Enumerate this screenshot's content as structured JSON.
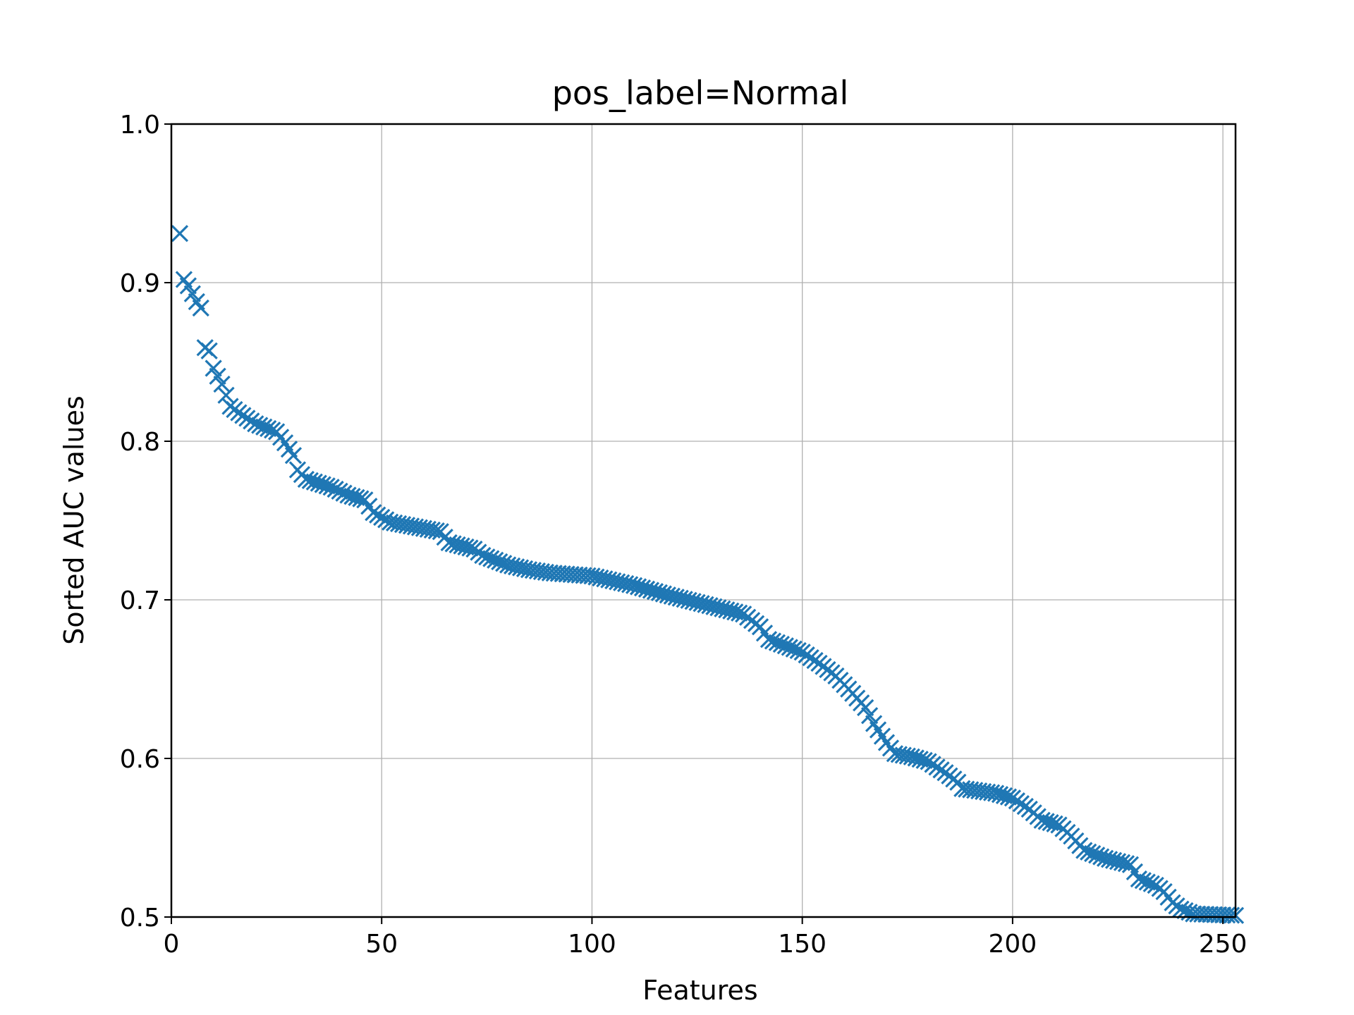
{
  "chart_data": {
    "type": "scatter",
    "title": "pos_label=Normal",
    "xlabel": "Features",
    "ylabel": "Sorted AUC values",
    "xlim": [
      0,
      253
    ],
    "ylim": [
      0.5,
      1.0
    ],
    "xticks": [
      0,
      50,
      100,
      150,
      200,
      250
    ],
    "yticks": [
      0.5,
      0.6,
      0.7,
      0.8,
      0.9,
      1.0
    ],
    "xtick_labels": [
      "0",
      "50",
      "100",
      "150",
      "200",
      "250"
    ],
    "ytick_labels": [
      "0.5",
      "0.6",
      "0.7",
      "0.8",
      "0.9",
      "1.0"
    ],
    "grid": true,
    "marker": "x",
    "color": "#1f77b4",
    "anchors": [
      [
        2,
        0.931
      ],
      [
        3,
        0.902
      ],
      [
        4,
        0.898
      ],
      [
        5,
        0.893
      ],
      [
        6,
        0.888
      ],
      [
        7,
        0.884
      ],
      [
        8,
        0.859
      ],
      [
        9,
        0.857
      ],
      [
        10,
        0.846
      ],
      [
        12,
        0.836
      ],
      [
        14,
        0.822
      ],
      [
        16,
        0.818
      ],
      [
        20,
        0.811
      ],
      [
        23,
        0.808
      ],
      [
        25,
        0.806
      ],
      [
        27,
        0.799
      ],
      [
        29,
        0.791
      ],
      [
        30,
        0.782
      ],
      [
        32,
        0.776
      ],
      [
        38,
        0.771
      ],
      [
        42,
        0.766
      ],
      [
        46,
        0.763
      ],
      [
        48,
        0.755
      ],
      [
        52,
        0.749
      ],
      [
        60,
        0.745
      ],
      [
        64,
        0.743
      ],
      [
        66,
        0.736
      ],
      [
        72,
        0.732
      ],
      [
        74,
        0.728
      ],
      [
        80,
        0.722
      ],
      [
        85,
        0.719
      ],
      [
        90,
        0.717
      ],
      [
        100,
        0.715
      ],
      [
        110,
        0.709
      ],
      [
        118,
        0.703
      ],
      [
        124,
        0.699
      ],
      [
        130,
        0.695
      ],
      [
        136,
        0.691
      ],
      [
        140,
        0.683
      ],
      [
        142,
        0.675
      ],
      [
        146,
        0.671
      ],
      [
        150,
        0.667
      ],
      [
        154,
        0.66
      ],
      [
        158,
        0.652
      ],
      [
        162,
        0.641
      ],
      [
        165,
        0.632
      ],
      [
        167,
        0.622
      ],
      [
        170,
        0.61
      ],
      [
        172,
        0.603
      ],
      [
        176,
        0.601
      ],
      [
        180,
        0.598
      ],
      [
        184,
        0.591
      ],
      [
        187,
        0.585
      ],
      [
        188,
        0.581
      ],
      [
        196,
        0.578
      ],
      [
        200,
        0.575
      ],
      [
        204,
        0.568
      ],
      [
        207,
        0.561
      ],
      [
        211,
        0.558
      ],
      [
        214,
        0.551
      ],
      [
        217,
        0.542
      ],
      [
        222,
        0.537
      ],
      [
        228,
        0.533
      ],
      [
        230,
        0.524
      ],
      [
        234,
        0.52
      ],
      [
        236,
        0.516
      ],
      [
        238,
        0.509
      ],
      [
        240,
        0.505
      ],
      [
        243,
        0.502
      ],
      [
        253,
        0.501
      ]
    ]
  }
}
